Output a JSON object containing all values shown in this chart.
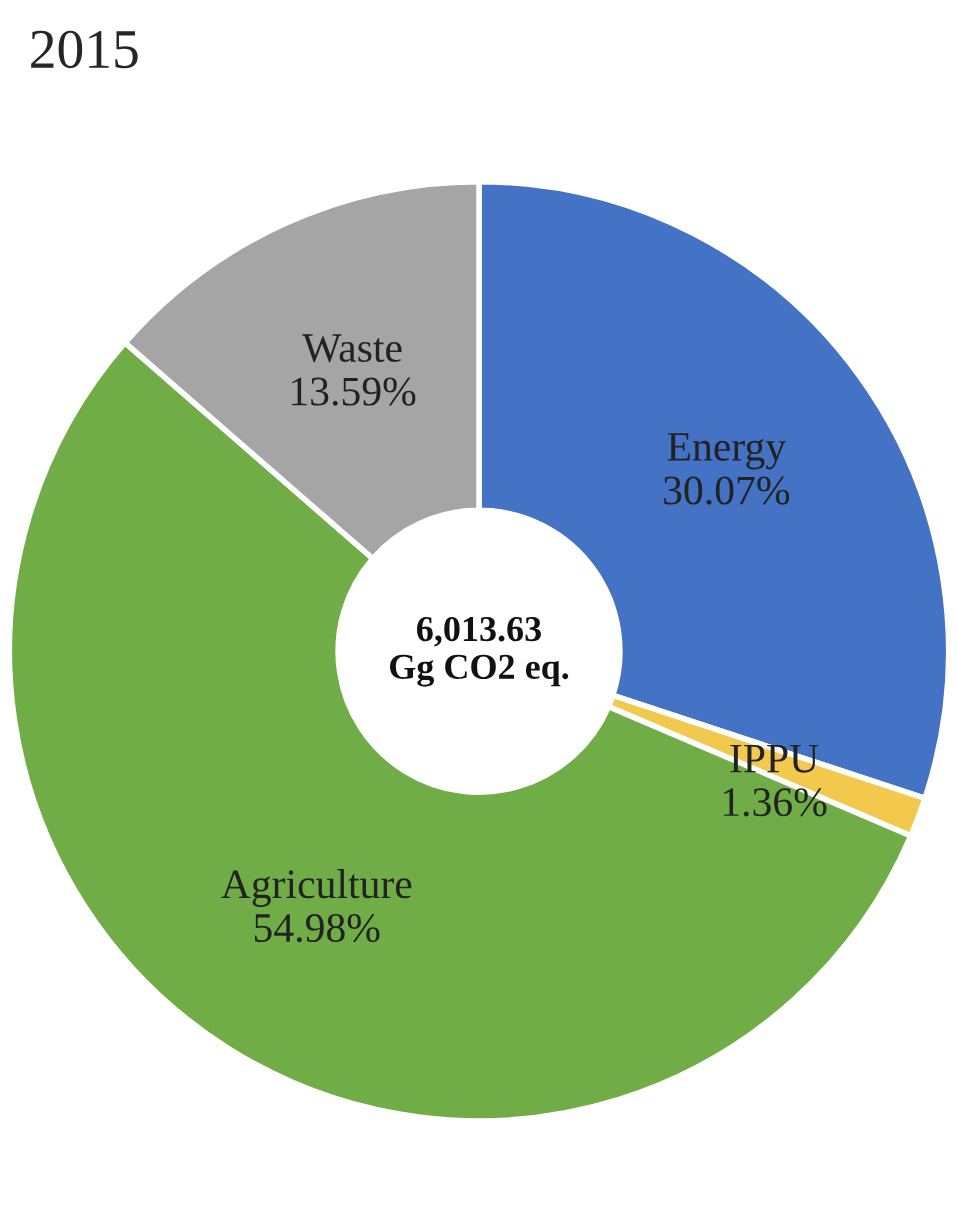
{
  "chart_data": {
    "type": "donut",
    "title": "2015",
    "categories": [
      "Energy",
      "IPPU",
      "Agriculture",
      "Waste"
    ],
    "values": [
      30.07,
      1.36,
      54.98,
      13.59
    ],
    "value_labels": [
      "30.07%",
      "1.36%",
      "54.98%",
      "13.59%"
    ],
    "colors": [
      "#4472c4",
      "#f2c94c",
      "#70ad47",
      "#a5a5a5"
    ],
    "annotations": [
      "6,013.63\nGg CO2 eq."
    ]
  }
}
